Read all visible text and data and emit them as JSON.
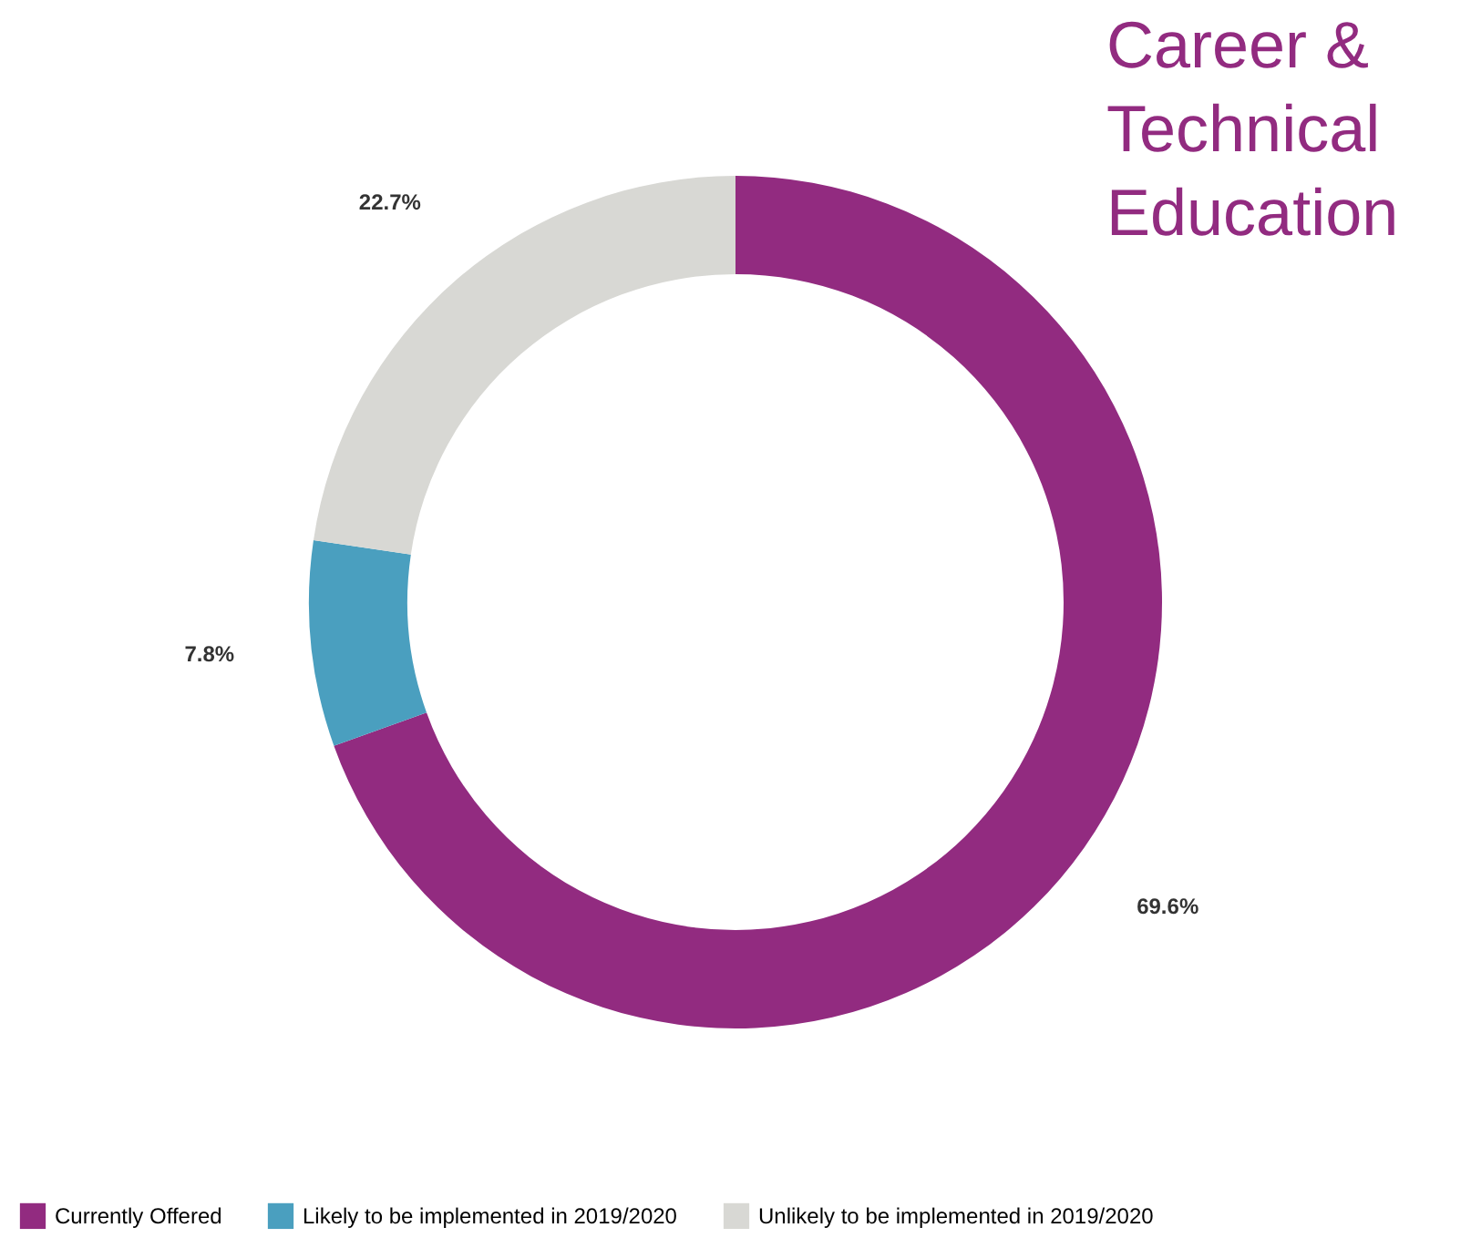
{
  "chart_data": {
    "type": "donut",
    "title": "Career & Technical Education",
    "categories": [
      "Currently Offered",
      "Likely to be implemented in 2019/2020",
      "Unlikely to be implemented in 2019/2020"
    ],
    "values": [
      69.6,
      7.8,
      22.7
    ],
    "colors": [
      "#922b80",
      "#4a9fbf",
      "#d8d8d4"
    ],
    "value_labels": [
      "69.6%",
      "7.8%",
      "22.7%"
    ],
    "legend": "bottom"
  }
}
